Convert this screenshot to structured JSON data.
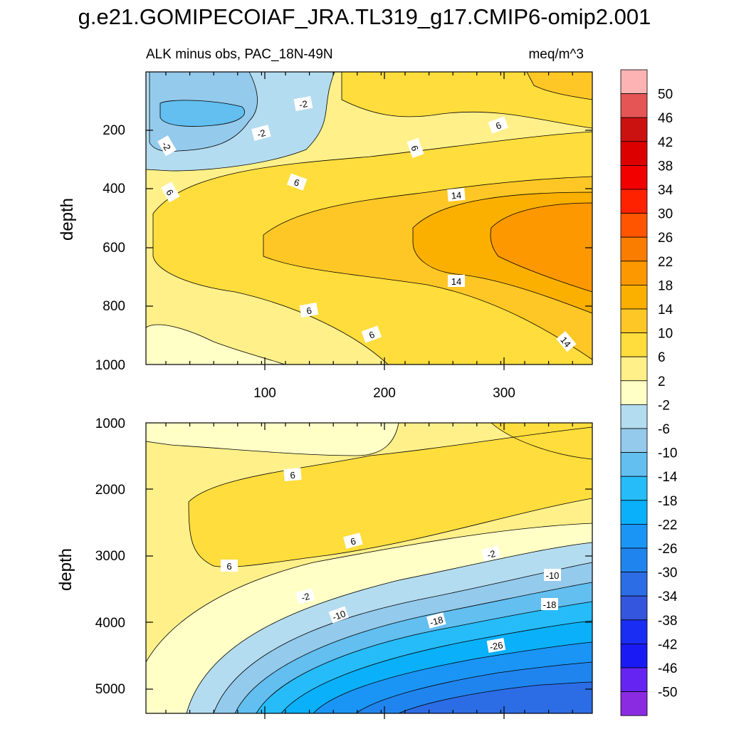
{
  "chart_data": {
    "type": "heatmap",
    "title": "g.e21.GOMIPECOIAF_JRA.TL319_g17.CMIP6-omip2.001",
    "subtitle_left": "ALK minus obs, PAC_18N-49N",
    "subtitle_right": "meq/m^3",
    "colorbar": {
      "levels": [
        "50",
        "46",
        "42",
        "38",
        "34",
        "30",
        "26",
        "22",
        "18",
        "14",
        "10",
        "6",
        "2",
        "-2",
        "-6",
        "-10",
        "-14",
        "-18",
        "-22",
        "-26",
        "-30",
        "-34",
        "-38",
        "-42",
        "-46",
        "-50"
      ],
      "colors": [
        "#fdb3b3",
        "#e55555",
        "#cc1111",
        "#dd0000",
        "#f20000",
        "#ff2200",
        "#ff5500",
        "#fb7d00",
        "#fd9800",
        "#fbb000",
        "#ffc726",
        "#ffdd3c",
        "#fff08a",
        "#ffffc6",
        "#b4dcf0",
        "#94caeb",
        "#62bff0",
        "#26bcf9",
        "#0ab0f9",
        "#1a95f6",
        "#2084ee",
        "#2c6de6",
        "#3455dd",
        "#1a2df3",
        "#1a1af5",
        "#6624f2",
        "#8a2be2"
      ]
    },
    "panels": [
      {
        "name": "upper",
        "ylabel": "depth",
        "ylim": [
          0,
          1000
        ],
        "xlim": [
          1,
          370
        ],
        "xticks": [
          "100",
          "200",
          "300"
        ],
        "yticks": [
          "200",
          "400",
          "600",
          "800",
          "1000"
        ],
        "contour_labels": [
          "-2",
          "-2",
          "-2",
          "6",
          "6",
          "6",
          "6",
          "14",
          "14",
          "6",
          "6",
          "14"
        ]
      },
      {
        "name": "lower",
        "ylabel": "depth",
        "ylim": [
          1000,
          5400
        ],
        "xlim": [
          1,
          370
        ],
        "xticks": [],
        "yticks": [
          "1000",
          "2000",
          "3000",
          "4000",
          "5000"
        ],
        "contour_labels": [
          "6",
          "6",
          "6",
          "-2",
          "-2",
          "-10",
          "-10",
          "-18",
          "-18",
          "-26"
        ]
      }
    ]
  }
}
